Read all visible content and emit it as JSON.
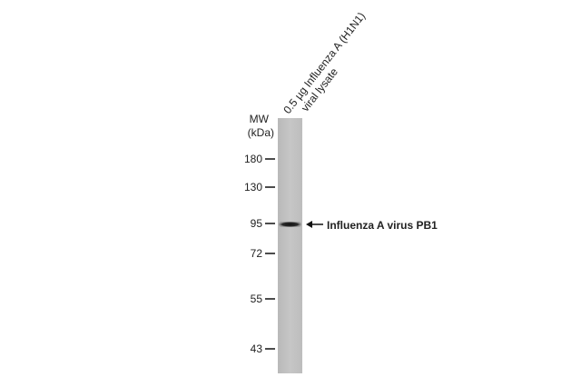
{
  "lane_label": [
    "0.5 µg Influenza A (H1N1)",
    "viral lysate"
  ],
  "mw_label": [
    "MW",
    "(kDa)"
  ],
  "markers": [
    180,
    130,
    95,
    72,
    55,
    43
  ],
  "band_label": "Influenza A virus PB1"
}
